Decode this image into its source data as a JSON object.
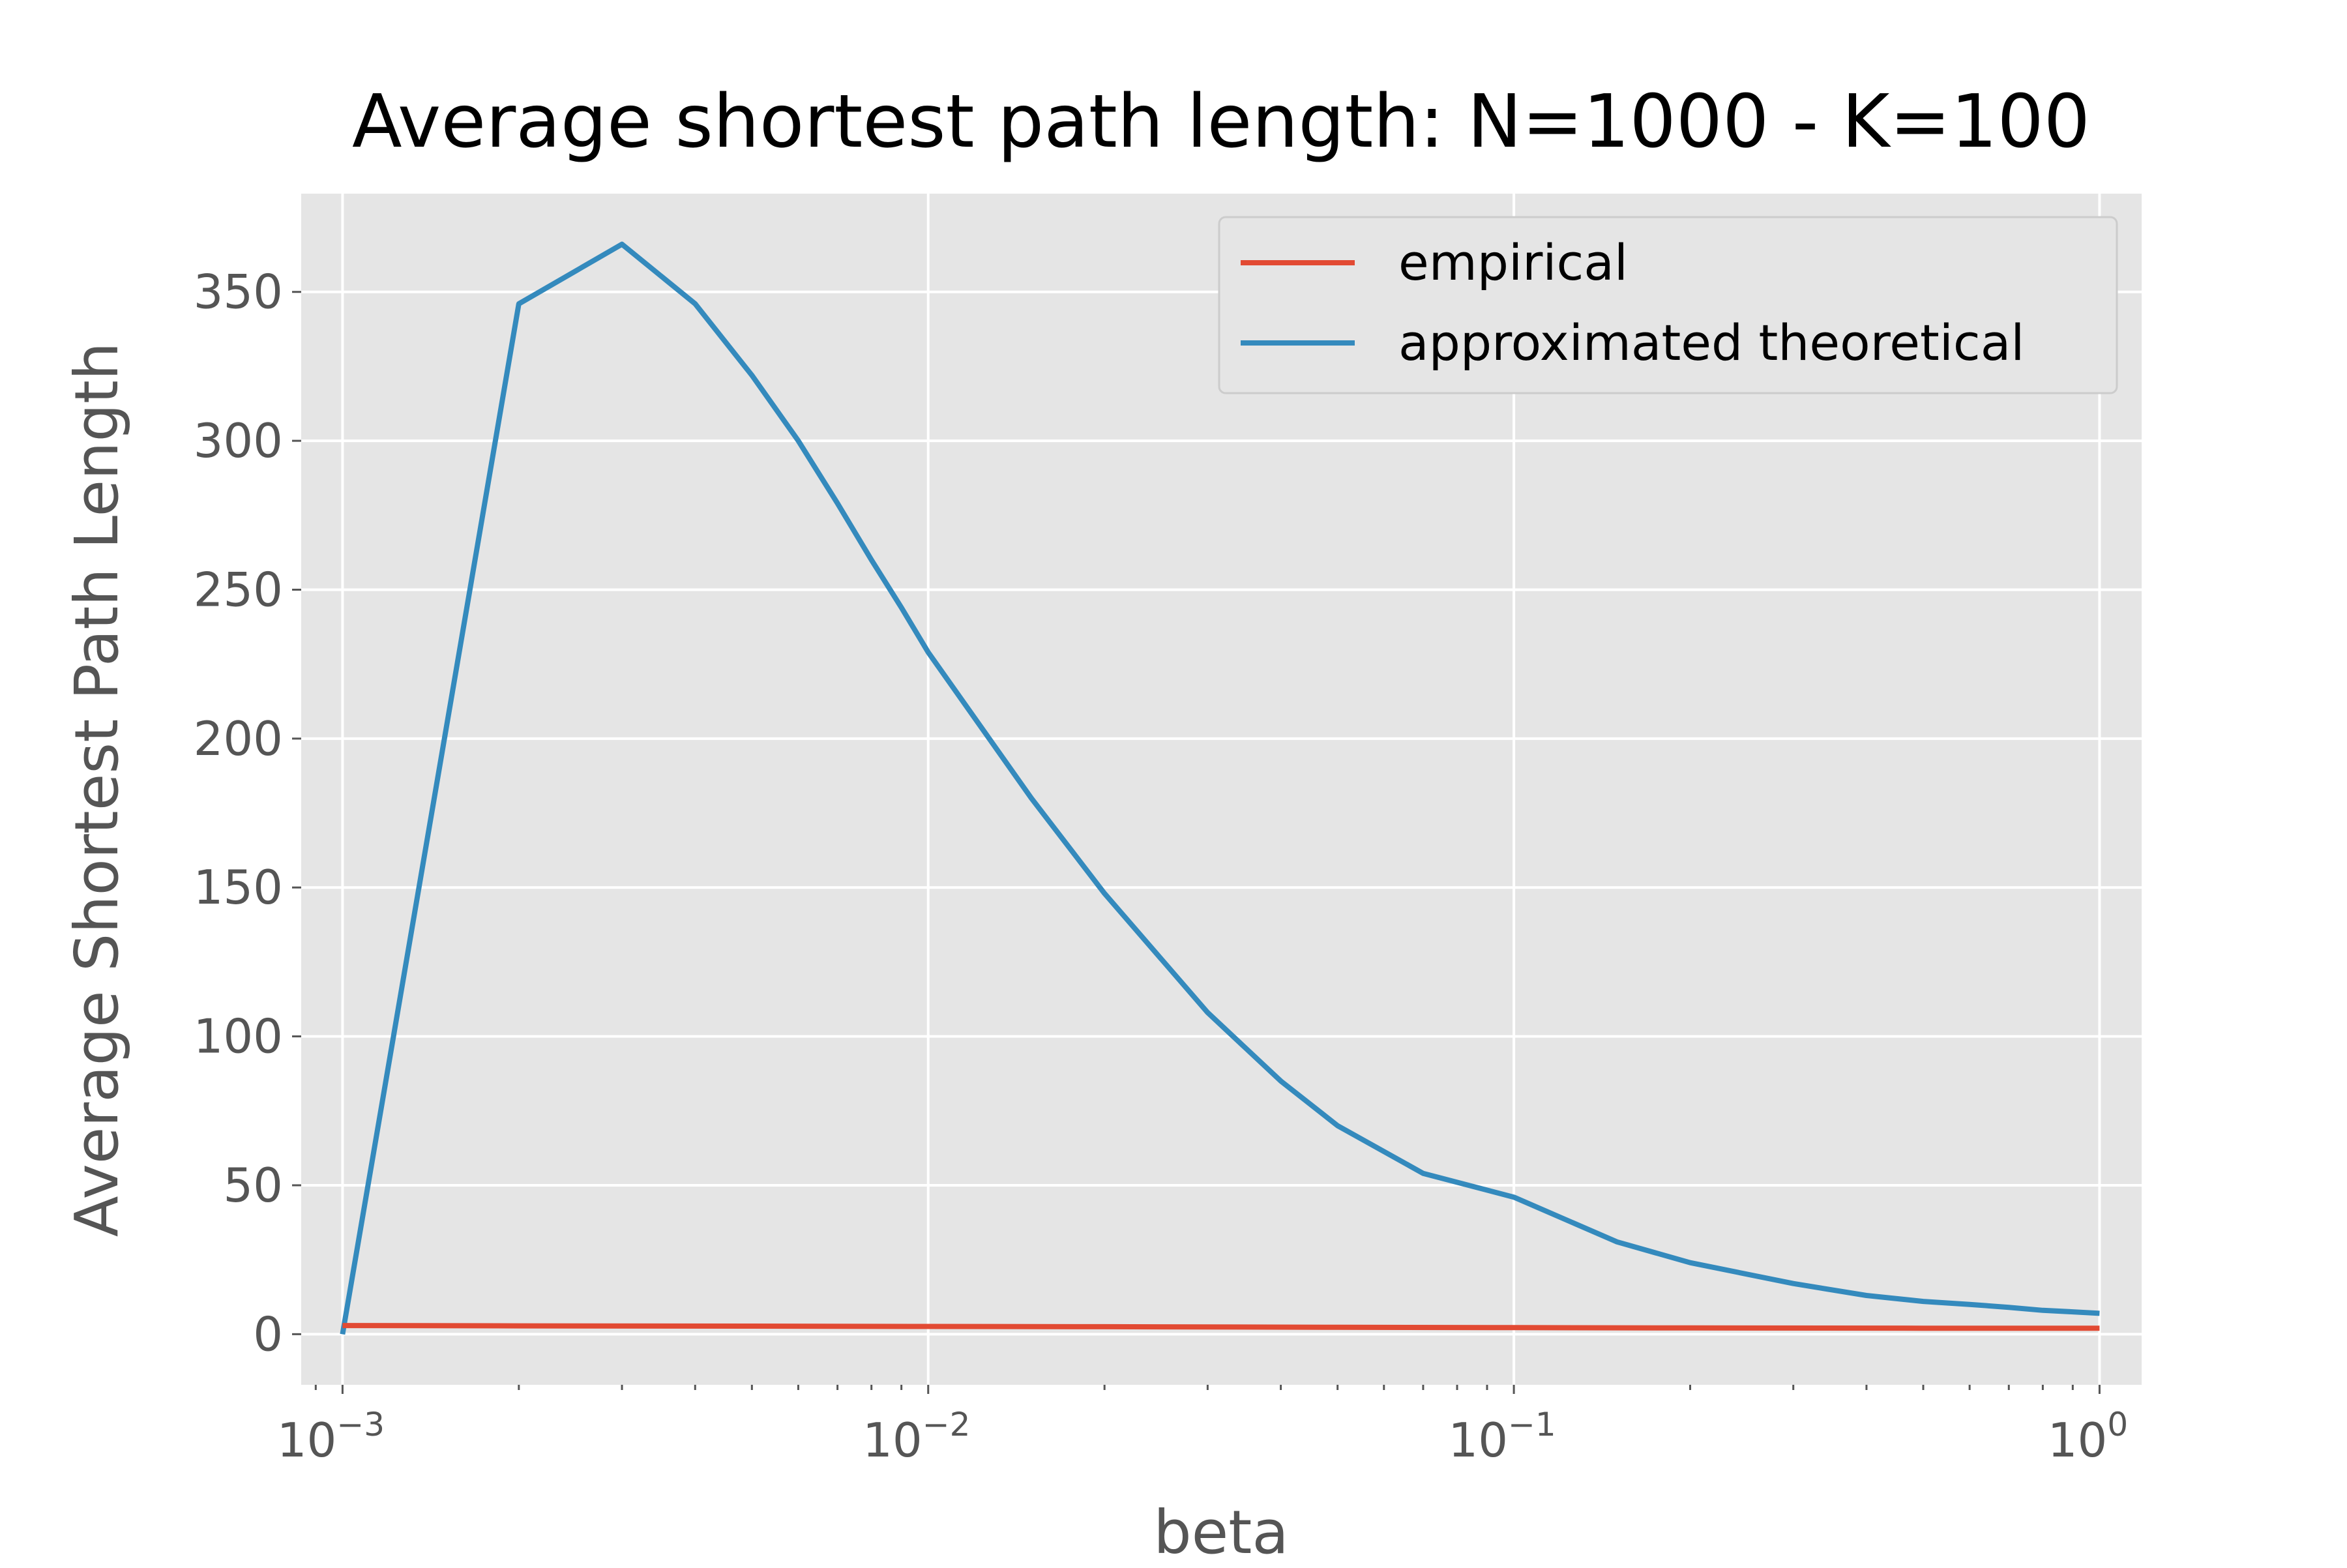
{
  "chart_data": {
    "type": "line",
    "title": "Average shortest path length: N=1000 - K=100",
    "xlabel": "beta",
    "ylabel": "Average Shortest Path Length",
    "xscale": "log",
    "xlim": [
      0.00085,
      1.18
    ],
    "ylim": [
      -17,
      383
    ],
    "grid": true,
    "legend_position": "top-right",
    "x_ticks": [
      {
        "value": 0.001,
        "base": "10",
        "exp": "−3"
      },
      {
        "value": 0.01,
        "base": "10",
        "exp": "−2"
      },
      {
        "value": 0.1,
        "base": "10",
        "exp": "−1"
      },
      {
        "value": 1,
        "base": "10",
        "exp": "0"
      }
    ],
    "y_ticks": [
      0,
      50,
      100,
      150,
      200,
      250,
      300,
      350
    ],
    "series": [
      {
        "name": "empirical",
        "color": "#e24a33",
        "x": [
          0.001,
          0.002,
          0.005,
          0.01,
          0.02,
          0.05,
          0.1,
          0.2,
          0.5,
          1.0
        ],
        "y": [
          2.9,
          2.8,
          2.7,
          2.6,
          2.5,
          2.3,
          2.2,
          2.1,
          2.0,
          2.0
        ]
      },
      {
        "name": "approximated theoretical",
        "color": "#348abd",
        "x": [
          0.001,
          0.002,
          0.003,
          0.004,
          0.005,
          0.006,
          0.007,
          0.008,
          0.009,
          0.01,
          0.015,
          0.02,
          0.03,
          0.04,
          0.05,
          0.07,
          0.1,
          0.15,
          0.2,
          0.3,
          0.4,
          0.5,
          0.6,
          0.7,
          0.8,
          0.9,
          1.0
        ],
        "y": [
          0,
          346,
          366,
          346,
          322,
          300,
          279,
          260,
          244,
          229,
          180,
          148,
          108,
          85,
          70,
          54,
          46,
          31,
          24,
          17,
          13,
          11,
          10,
          9,
          8,
          7.5,
          7
        ]
      }
    ]
  }
}
